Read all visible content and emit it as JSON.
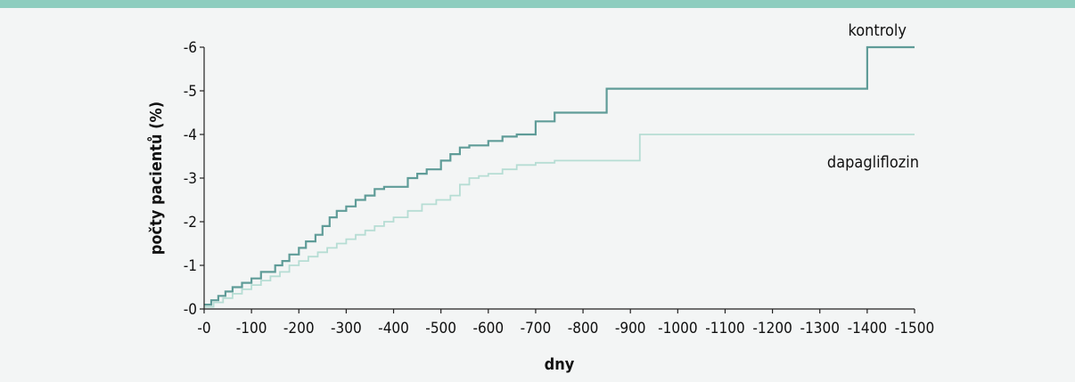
{
  "colors": {
    "top_band": "#8ecdbf",
    "background": "#f3f5f5",
    "axis": "#222222",
    "kontroly": "#5f9c98",
    "dapagliflozin": "#b6ddd4"
  },
  "chart_data": {
    "type": "line",
    "step": true,
    "title": "",
    "xlabel": "dny",
    "ylabel": "počty pacientů (%)",
    "xlim": [
      0,
      1500
    ],
    "ylim": [
      0,
      6
    ],
    "grid": false,
    "x_ticks": [
      0,
      100,
      200,
      300,
      400,
      500,
      600,
      700,
      800,
      900,
      1000,
      1100,
      1200,
      1300,
      1400,
      1500
    ],
    "x_tick_labels": [
      "-0",
      "-100",
      "-200",
      "-300",
      "-400",
      "-500",
      "-600",
      "-700",
      "-800",
      "-900",
      "-1000",
      "-1100",
      "-1200",
      "-1300",
      "-1400",
      "-1500"
    ],
    "y_ticks": [
      0,
      1,
      2,
      3,
      4,
      5,
      6
    ],
    "y_tick_labels": [
      "-0",
      "-1",
      "-2",
      "-3",
      "-4",
      "-5",
      "-6"
    ],
    "series": [
      {
        "name": "kontroly",
        "x": [
          0,
          15,
          30,
          45,
          60,
          80,
          100,
          120,
          150,
          165,
          180,
          200,
          215,
          235,
          250,
          265,
          280,
          300,
          320,
          340,
          360,
          380,
          400,
          430,
          450,
          470,
          500,
          520,
          540,
          560,
          600,
          630,
          660,
          700,
          740,
          850,
          1400,
          1500
        ],
        "y": [
          0.1,
          0.2,
          0.3,
          0.4,
          0.5,
          0.6,
          0.7,
          0.85,
          1.0,
          1.1,
          1.25,
          1.4,
          1.55,
          1.7,
          1.9,
          2.1,
          2.25,
          2.35,
          2.5,
          2.6,
          2.75,
          2.8,
          2.8,
          3.0,
          3.1,
          3.2,
          3.4,
          3.55,
          3.7,
          3.75,
          3.85,
          3.95,
          4.0,
          4.3,
          4.5,
          5.05,
          6.0,
          6.0
        ]
      },
      {
        "name": "dapagliflozin",
        "x": [
          0,
          20,
          40,
          60,
          80,
          100,
          120,
          140,
          160,
          180,
          200,
          220,
          240,
          260,
          280,
          300,
          320,
          340,
          360,
          380,
          400,
          430,
          460,
          490,
          520,
          540,
          560,
          580,
          600,
          630,
          660,
          700,
          740,
          920,
          1500
        ],
        "y": [
          0.05,
          0.15,
          0.25,
          0.35,
          0.45,
          0.55,
          0.65,
          0.75,
          0.85,
          1.0,
          1.1,
          1.2,
          1.3,
          1.4,
          1.5,
          1.6,
          1.7,
          1.8,
          1.9,
          2.0,
          2.1,
          2.25,
          2.4,
          2.5,
          2.6,
          2.85,
          3.0,
          3.05,
          3.1,
          3.2,
          3.3,
          3.35,
          3.4,
          4.0,
          4.0
        ]
      }
    ],
    "series_labels": {
      "kontroly": "kontroly",
      "dapagliflozin": "dapagliflozin"
    }
  }
}
